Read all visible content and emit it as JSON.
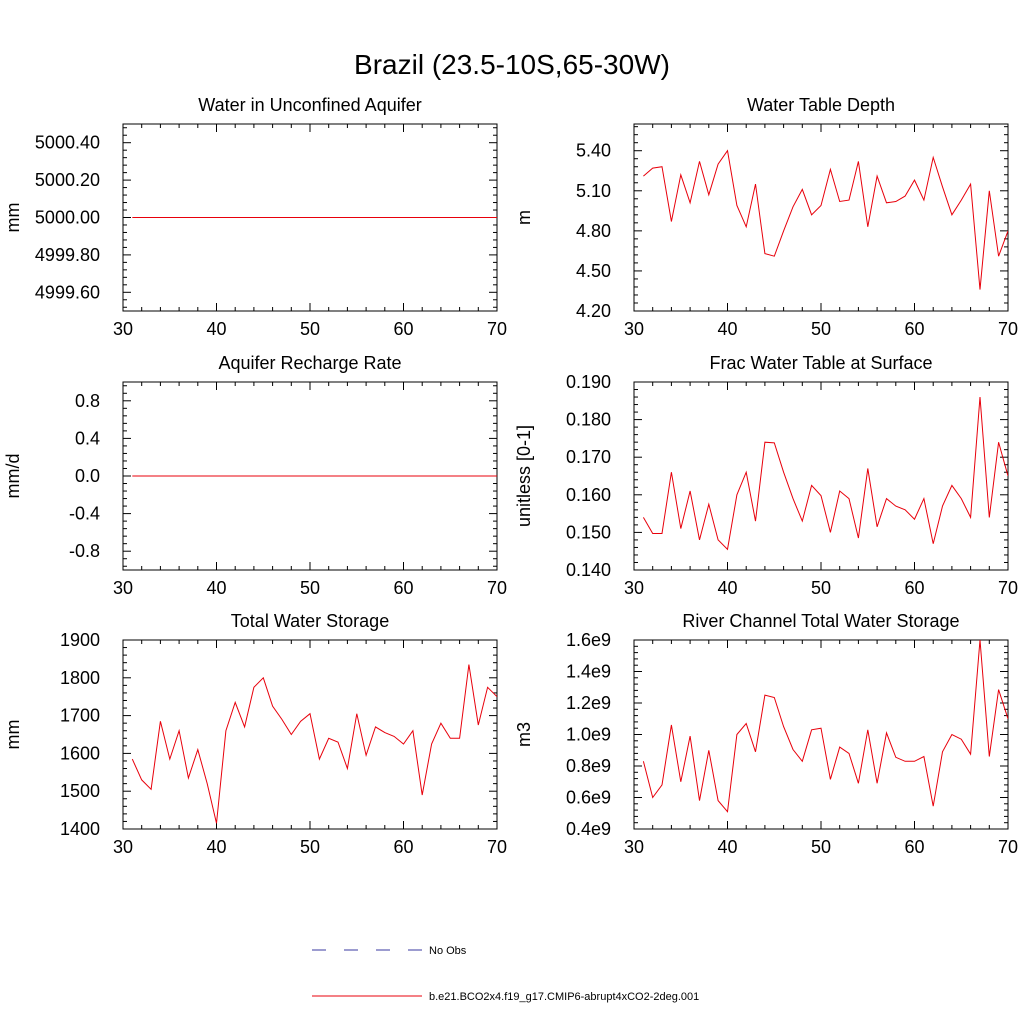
{
  "figure": {
    "title": "Brazil (23.5-10S,65-30W)"
  },
  "legend": {
    "items": [
      {
        "label": "No Obs",
        "style": "dashed",
        "color": "#3a3aa0"
      },
      {
        "label": "b.e21.BCO2x4.f19_g17.CMIP6-abrupt4xCO2-2deg.001",
        "style": "solid",
        "color": "#e8000b"
      }
    ]
  },
  "chart_data": [
    {
      "type": "line",
      "title": "Water in Unconfined Aquifer",
      "xlabel": "",
      "ylabel": "mm",
      "xlim": [
        30,
        70
      ],
      "ylim": [
        4999.5,
        5000.5
      ],
      "xticks": [
        "30",
        "40",
        "50",
        "60",
        "70"
      ],
      "yticks": [
        "4999.60",
        "4999.80",
        "5000.00",
        "5000.20",
        "5000.40"
      ],
      "series": [
        {
          "name": "b.e21.BCO2x4.f19_g17.CMIP6-abrupt4xCO2-2deg.001",
          "x": [
            31,
            70
          ],
          "values": [
            5000.0,
            5000.0
          ]
        }
      ]
    },
    {
      "type": "line",
      "title": "Water Table Depth",
      "xlabel": "",
      "ylabel": "m",
      "xlim": [
        30,
        70
      ],
      "ylim": [
        4.2,
        5.6
      ],
      "xticks": [
        "30",
        "40",
        "50",
        "60",
        "70"
      ],
      "yticks": [
        "4.20",
        "4.50",
        "4.80",
        "5.10",
        "5.40"
      ],
      "series": [
        {
          "name": "b.e21.BCO2x4.f19_g17.CMIP6-abrupt4xCO2-2deg.001",
          "x": [
            31,
            32,
            33,
            34,
            35,
            36,
            37,
            38,
            39,
            40,
            41,
            42,
            43,
            44,
            45,
            46,
            47,
            48,
            49,
            50,
            51,
            52,
            53,
            54,
            55,
            56,
            57,
            58,
            59,
            60,
            61,
            62,
            63,
            64,
            65,
            66,
            67,
            68,
            69,
            70
          ],
          "values": [
            5.21,
            5.27,
            5.28,
            4.87,
            5.22,
            5.01,
            5.32,
            5.07,
            5.3,
            5.4,
            4.99,
            4.83,
            5.15,
            4.63,
            4.61,
            4.8,
            4.98,
            5.11,
            4.92,
            4.99,
            5.26,
            5.02,
            5.03,
            5.32,
            4.83,
            5.21,
            5.01,
            5.02,
            5.06,
            5.18,
            5.03,
            5.35,
            5.13,
            4.92,
            5.03,
            5.15,
            4.36,
            5.1,
            4.61,
            4.8
          ]
        }
      ]
    },
    {
      "type": "line",
      "title": "Aquifer Recharge Rate",
      "xlabel": "",
      "ylabel": "mm/d",
      "xlim": [
        30,
        70
      ],
      "ylim": [
        -1.0,
        1.0
      ],
      "xticks": [
        "30",
        "40",
        "50",
        "60",
        "70"
      ],
      "yticks": [
        "-0.8",
        "-0.4",
        "0.0",
        "0.4",
        "0.8"
      ],
      "series": [
        {
          "name": "b.e21.BCO2x4.f19_g17.CMIP6-abrupt4xCO2-2deg.001",
          "x": [
            31,
            70
          ],
          "values": [
            0.0,
            0.0
          ]
        }
      ]
    },
    {
      "type": "line",
      "title": "Frac Water Table at Surface",
      "xlabel": "",
      "ylabel": "unitless [0-1]",
      "xlim": [
        30,
        70
      ],
      "ylim": [
        0.14,
        0.19
      ],
      "xticks": [
        "30",
        "40",
        "50",
        "60",
        "70"
      ],
      "yticks": [
        "0.140",
        "0.150",
        "0.160",
        "0.170",
        "0.180",
        "0.190"
      ],
      "series": [
        {
          "name": "b.e21.BCO2x4.f19_g17.CMIP6-abrupt4xCO2-2deg.001",
          "x": [
            31,
            32,
            33,
            34,
            35,
            36,
            37,
            38,
            39,
            40,
            41,
            42,
            43,
            44,
            45,
            46,
            47,
            48,
            49,
            50,
            51,
            52,
            53,
            54,
            55,
            56,
            57,
            58,
            59,
            60,
            61,
            62,
            63,
            64,
            65,
            66,
            67,
            68,
            69,
            70
          ],
          "values": [
            0.154,
            0.1497,
            0.1497,
            0.166,
            0.151,
            0.161,
            0.148,
            0.1575,
            0.148,
            0.1455,
            0.16,
            0.166,
            0.153,
            0.174,
            0.1738,
            0.166,
            0.159,
            0.153,
            0.1625,
            0.1598,
            0.15,
            0.161,
            0.159,
            0.1485,
            0.167,
            0.1515,
            0.159,
            0.157,
            0.156,
            0.1535,
            0.159,
            0.147,
            0.157,
            0.1625,
            0.159,
            0.154,
            0.186,
            0.154,
            0.174,
            0.165
          ]
        }
      ]
    },
    {
      "type": "line",
      "title": "Total Water Storage",
      "xlabel": "",
      "ylabel": "mm",
      "xlim": [
        30,
        70
      ],
      "ylim": [
        1400,
        1900
      ],
      "xticks": [
        "30",
        "40",
        "50",
        "60",
        "70"
      ],
      "yticks": [
        "1400",
        "1500",
        "1600",
        "1700",
        "1800",
        "1900"
      ],
      "series": [
        {
          "name": "b.e21.BCO2x4.f19_g17.CMIP6-abrupt4xCO2-2deg.001",
          "x": [
            31,
            32,
            33,
            34,
            35,
            36,
            37,
            38,
            39,
            40,
            41,
            42,
            43,
            44,
            45,
            46,
            47,
            48,
            49,
            50,
            51,
            52,
            53,
            54,
            55,
            56,
            57,
            58,
            59,
            60,
            61,
            62,
            63,
            64,
            65,
            66,
            67,
            68,
            69,
            70
          ],
          "values": [
            1585,
            1530,
            1505,
            1685,
            1585,
            1660,
            1535,
            1610,
            1520,
            1415,
            1660,
            1735,
            1670,
            1775,
            1800,
            1725,
            1690,
            1650,
            1685,
            1705,
            1585,
            1640,
            1630,
            1560,
            1705,
            1595,
            1670,
            1655,
            1645,
            1625,
            1660,
            1490,
            1625,
            1680,
            1640,
            1640,
            1835,
            1675,
            1775,
            1750
          ]
        }
      ]
    },
    {
      "type": "line",
      "title": "River Channel Total Water Storage",
      "xlabel": "",
      "ylabel": "m3",
      "xlim": [
        30,
        70
      ],
      "ylim": [
        400000000,
        1600000000
      ],
      "xticks": [
        "30",
        "40",
        "50",
        "60",
        "70"
      ],
      "yticks": [
        "0.4e9",
        "0.6e9",
        "0.8e9",
        "1.0e9",
        "1.2e9",
        "1.4e9",
        "1.6e9"
      ],
      "series": [
        {
          "name": "b.e21.BCO2x4.f19_g17.CMIP6-abrupt4xCO2-2deg.001",
          "x": [
            31,
            32,
            33,
            34,
            35,
            36,
            37,
            38,
            39,
            40,
            41,
            42,
            43,
            44,
            45,
            46,
            47,
            48,
            49,
            50,
            51,
            52,
            53,
            54,
            55,
            56,
            57,
            58,
            59,
            60,
            61,
            62,
            63,
            64,
            65,
            66,
            67,
            68,
            69,
            70
          ],
          "values": [
            830000000,
            600000000,
            680000000,
            1060000000,
            700000000,
            990000000,
            580000000,
            900000000,
            580000000,
            510000000,
            1000000000,
            1070000000,
            890000000,
            1250000000,
            1235000000,
            1050000000,
            905000000,
            830000000,
            1030000000,
            1040000000,
            715000000,
            920000000,
            880000000,
            690000000,
            1030000000,
            690000000,
            1010000000,
            855000000,
            830000000,
            830000000,
            860000000,
            545000000,
            890000000,
            1000000000,
            970000000,
            875000000,
            1600000000,
            860000000,
            1285000000,
            1100000000
          ]
        }
      ]
    }
  ]
}
